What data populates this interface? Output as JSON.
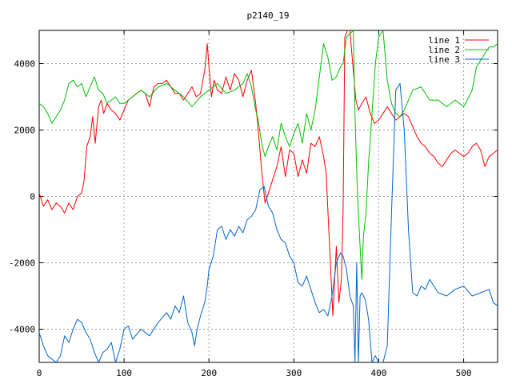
{
  "chart_data": {
    "type": "line",
    "title": "p2140_19",
    "xlabel": "",
    "ylabel": "",
    "xlim": [
      0,
      540
    ],
    "ylim": [
      -5000,
      5000
    ],
    "xticks": [
      0,
      100,
      200,
      300,
      400,
      500
    ],
    "yticks": [
      -4000,
      -2000,
      0,
      2000,
      4000
    ],
    "grid": true,
    "legend_position": "top-right",
    "series": [
      {
        "name": "line 1",
        "color": "#ff0000",
        "x": [
          0,
          5,
          10,
          15,
          20,
          25,
          30,
          35,
          40,
          45,
          50,
          53,
          56,
          60,
          63,
          66,
          70,
          73,
          76,
          80,
          85,
          90,
          95,
          100,
          105,
          110,
          115,
          120,
          125,
          130,
          135,
          140,
          145,
          150,
          155,
          160,
          165,
          170,
          175,
          180,
          185,
          190,
          195,
          198,
          200,
          203,
          206,
          210,
          215,
          220,
          225,
          230,
          235,
          240,
          245,
          250,
          255,
          258,
          262,
          266,
          270,
          275,
          280,
          285,
          290,
          295,
          300,
          305,
          310,
          315,
          320,
          325,
          330,
          335,
          338,
          340,
          343,
          346,
          350,
          353,
          356,
          358,
          360,
          363,
          366,
          370,
          373,
          376,
          380,
          385,
          390,
          395,
          400,
          405,
          410,
          415,
          420,
          425,
          430,
          435,
          440,
          445,
          450,
          455,
          460,
          465,
          470,
          475,
          480,
          485,
          490,
          495,
          500,
          505,
          510,
          515,
          520,
          525,
          530,
          535,
          540
        ],
        "values": [
          100,
          -300,
          -100,
          -400,
          -200,
          -300,
          -500,
          -200,
          -400,
          0,
          100,
          500,
          1500,
          1800,
          2400,
          1600,
          2700,
          2900,
          2500,
          2800,
          2600,
          2500,
          2300,
          2600,
          2900,
          3000,
          3100,
          3200,
          3100,
          2700,
          3300,
          3400,
          3400,
          3500,
          3300,
          3100,
          3100,
          2900,
          3100,
          3300,
          3000,
          3100,
          3800,
          4600,
          3900,
          3000,
          3500,
          3200,
          3100,
          3600,
          3200,
          3700,
          3500,
          3000,
          3500,
          3800,
          2800,
          2000,
          800,
          -200,
          100,
          500,
          900,
          1500,
          600,
          1400,
          1300,
          600,
          1100,
          700,
          1600,
          1500,
          1800,
          1200,
          700,
          -400,
          -2000,
          -3600,
          -1500,
          -3200,
          -2500,
          -400,
          4800,
          5000,
          5000,
          3800,
          2900,
          2600,
          2800,
          3000,
          2500,
          2200,
          2300,
          2500,
          2700,
          2500,
          2300,
          2400,
          2500,
          2400,
          2100,
          1800,
          1600,
          1500,
          1300,
          1200,
          1000,
          900,
          1100,
          1300,
          1400,
          1300,
          1200,
          1300,
          1500,
          1600,
          1400,
          900,
          1200,
          1300,
          1400
        ]
      },
      {
        "name": "line 2",
        "color": "#00c000",
        "x": [
          0,
          5,
          10,
          15,
          20,
          25,
          30,
          35,
          40,
          45,
          50,
          55,
          60,
          65,
          70,
          75,
          80,
          85,
          90,
          95,
          100,
          110,
          120,
          130,
          140,
          150,
          160,
          170,
          180,
          190,
          200,
          210,
          220,
          230,
          240,
          245,
          250,
          255,
          258,
          262,
          266,
          270,
          275,
          280,
          285,
          290,
          295,
          300,
          305,
          310,
          315,
          320,
          325,
          330,
          335,
          340,
          345,
          350,
          355,
          358,
          362,
          366,
          370,
          372,
          375,
          378,
          380,
          382,
          385,
          388,
          392,
          396,
          400,
          405,
          410,
          415,
          420,
          425,
          430,
          440,
          450,
          460,
          470,
          480,
          490,
          500,
          510,
          515,
          520,
          525,
          530,
          535,
          540
        ],
        "values": [
          2800,
          2700,
          2500,
          2200,
          2400,
          2600,
          2900,
          3400,
          3500,
          3300,
          3400,
          3000,
          3300,
          3600,
          3200,
          3100,
          2800,
          2900,
          3000,
          2800,
          2800,
          3000,
          3200,
          3000,
          3300,
          3400,
          3200,
          3000,
          2700,
          3000,
          3200,
          3400,
          3100,
          3200,
          3400,
          3700,
          3300,
          2600,
          2300,
          1600,
          1200,
          1500,
          1800,
          1400,
          2200,
          1800,
          1500,
          1900,
          2200,
          1600,
          2500,
          2000,
          2600,
          3600,
          4600,
          4200,
          3500,
          3600,
          3900,
          4000,
          4800,
          4900,
          5000,
          2500,
          0,
          -1500,
          -2500,
          -1200,
          -500,
          1000,
          2500,
          4000,
          4800,
          5000,
          3500,
          2800,
          2500,
          2400,
          2600,
          3200,
          3300,
          2900,
          2900,
          2700,
          2900,
          2700,
          3200,
          3900,
          4100,
          4300,
          4500,
          4500,
          4600
        ]
      },
      {
        "name": "line 3",
        "color": "#0066cc",
        "x": [
          0,
          5,
          10,
          15,
          20,
          25,
          30,
          35,
          40,
          45,
          50,
          55,
          60,
          65,
          70,
          75,
          80,
          85,
          90,
          95,
          100,
          105,
          110,
          120,
          130,
          140,
          150,
          155,
          160,
          165,
          170,
          175,
          180,
          183,
          186,
          190,
          195,
          198,
          200,
          205,
          210,
          215,
          220,
          225,
          230,
          235,
          240,
          245,
          250,
          255,
          260,
          265,
          270,
          275,
          280,
          285,
          290,
          295,
          300,
          305,
          310,
          315,
          320,
          325,
          330,
          335,
          340,
          345,
          350,
          355,
          358,
          362,
          366,
          370,
          372,
          374,
          376,
          378,
          380,
          384,
          388,
          392,
          396,
          400,
          405,
          410,
          415,
          420,
          425,
          430,
          435,
          440,
          445,
          450,
          455,
          460,
          465,
          470,
          480,
          490,
          500,
          510,
          520,
          530,
          535,
          540
        ],
        "values": [
          -4100,
          -4500,
          -4800,
          -4900,
          -5000,
          -4800,
          -4200,
          -4400,
          -4000,
          -3700,
          -3800,
          -4100,
          -4300,
          -4700,
          -5000,
          -4700,
          -4600,
          -4400,
          -5000,
          -4600,
          -4000,
          -3900,
          -4300,
          -4000,
          -4200,
          -3800,
          -3500,
          -3700,
          -3300,
          -3500,
          -3000,
          -3800,
          -4100,
          -4500,
          -4000,
          -3600,
          -3200,
          -2700,
          -2200,
          -1800,
          -1000,
          -900,
          -1300,
          -1000,
          -1200,
          -900,
          -1100,
          -700,
          -600,
          -400,
          200,
          300,
          -300,
          -500,
          -1000,
          -1300,
          -1400,
          -1800,
          -2000,
          -2600,
          -2700,
          -2400,
          -2800,
          -3200,
          -3500,
          -3400,
          -3600,
          -3000,
          -2000,
          -1700,
          -1800,
          -2200,
          -3000,
          -3300,
          -5000,
          -2000,
          -5000,
          -3000,
          -2900,
          -3100,
          -3700,
          -5000,
          -4800,
          -5000,
          -5000,
          -4500,
          -500,
          3200,
          3400,
          2000,
          -1000,
          -2900,
          -3000,
          -2700,
          -2800,
          -2500,
          -2700,
          -2900,
          -3000,
          -2800,
          -2700,
          -3000,
          -2900,
          -2800,
          -3200,
          -3300
        ]
      }
    ]
  }
}
